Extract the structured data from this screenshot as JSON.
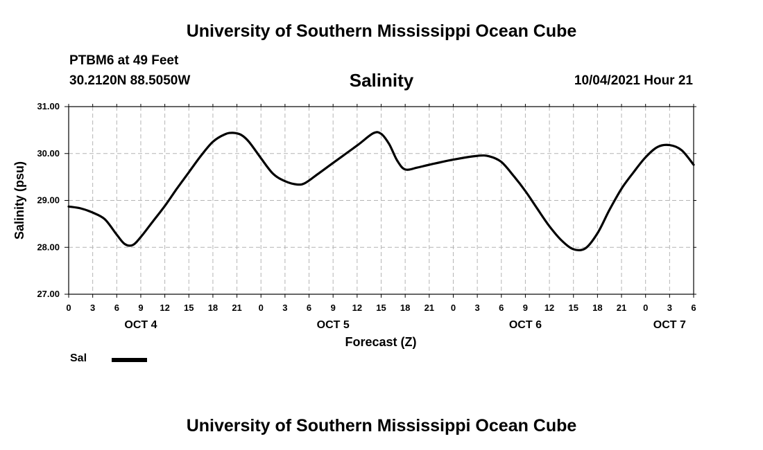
{
  "header": {
    "title": "University of Southern Mississippi Ocean Cube",
    "station": "PTBM6 at 49 Feet",
    "coordinates": "30.2120N  88.5050W",
    "variable": "Salinity",
    "datetime": "10/04/2021 Hour 21"
  },
  "footer": {
    "title": "University of Southern Mississippi Ocean Cube"
  },
  "legend": {
    "label": "Sal"
  },
  "chart_data": {
    "type": "line",
    "xlabel": "Forecast (Z)",
    "ylabel": "Salinity (psu)",
    "xlim": [
      0,
      78
    ],
    "ylim": [
      27.0,
      31.0
    ],
    "grid": true,
    "legend_position": "bottom-left",
    "line_color": "#000000",
    "yticks": [
      "27.00",
      "28.00",
      "29.00",
      "30.00",
      "31.00"
    ],
    "xtick_labels": [
      "0",
      "3",
      "6",
      "9",
      "12",
      "15",
      "18",
      "21",
      "0",
      "3",
      "6",
      "9",
      "12",
      "15",
      "18",
      "21",
      "0",
      "3",
      "6",
      "9",
      "12",
      "15",
      "18",
      "21",
      "0",
      "3",
      "6"
    ],
    "day_labels": [
      {
        "label": "OCT 4",
        "at_hour": 9
      },
      {
        "label": "OCT 5",
        "at_hour": 33
      },
      {
        "label": "OCT 6",
        "at_hour": 57
      },
      {
        "label": "OCT 7",
        "at_hour": 75
      }
    ],
    "series": [
      {
        "name": "Sal",
        "x": [
          0,
          1.5,
          3,
          4.5,
          6,
          7,
          8,
          9,
          10.5,
          12,
          13.5,
          15,
          16.5,
          18,
          19.5,
          20.5,
          21.5,
          22.5,
          24,
          25.5,
          27,
          28.5,
          29.5,
          31,
          33,
          36,
          38,
          39,
          40,
          41,
          42,
          43.5,
          45,
          48,
          51,
          52.5,
          54,
          55.5,
          57,
          58.5,
          60,
          61.5,
          63,
          64.5,
          66,
          67.5,
          69,
          70.5,
          72,
          73.5,
          75,
          76.5,
          78
        ],
        "y": [
          28.87,
          28.83,
          28.74,
          28.6,
          28.27,
          28.07,
          28.05,
          28.22,
          28.55,
          28.88,
          29.25,
          29.6,
          29.95,
          30.25,
          30.41,
          30.44,
          30.4,
          30.25,
          29.9,
          29.57,
          29.41,
          29.34,
          29.37,
          29.55,
          29.8,
          30.17,
          30.43,
          30.42,
          30.2,
          29.85,
          29.66,
          29.7,
          29.76,
          29.87,
          29.95,
          29.94,
          29.82,
          29.53,
          29.2,
          28.82,
          28.45,
          28.15,
          27.96,
          27.98,
          28.3,
          28.8,
          29.25,
          29.6,
          29.92,
          30.14,
          30.18,
          30.07,
          29.76
        ]
      }
    ]
  }
}
